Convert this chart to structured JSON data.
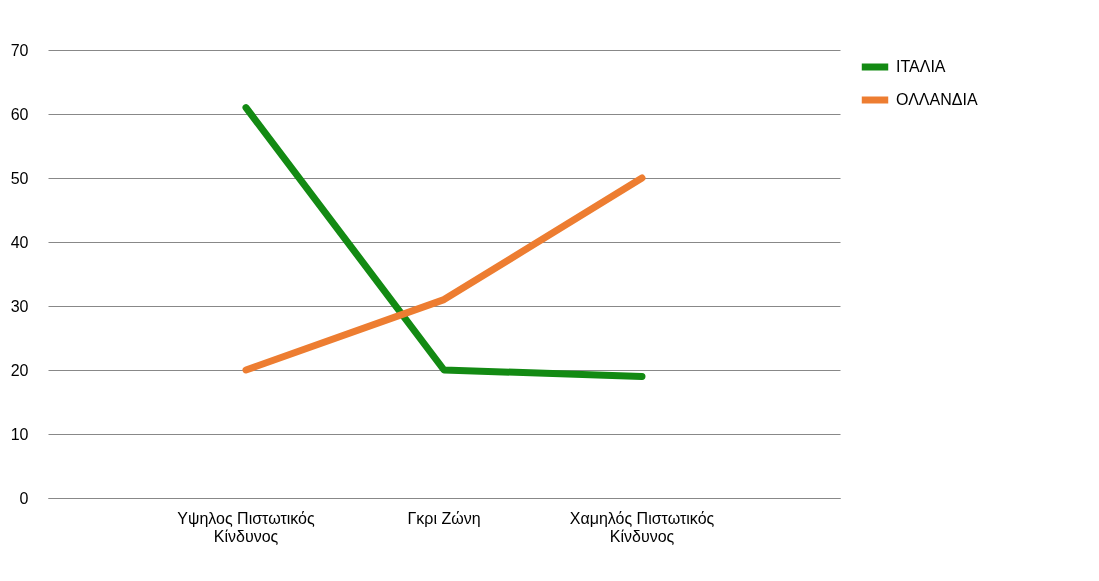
{
  "chart_data": {
    "type": "line",
    "categories": [
      "Υψηλος Πιστωτικός\nΚίνδυνος",
      "Γκρι Ζώνη",
      "Χαμηλός Πιστωτικός\nΚίνδυνος"
    ],
    "series": [
      {
        "name": "ΙΤΑΛΙΑ",
        "color": "#138a13",
        "values": [
          61,
          20,
          19
        ]
      },
      {
        "name": "ΟΛΛΑΝΔΙΑ",
        "color": "#ed7d31",
        "values": [
          20,
          31,
          50
        ]
      }
    ],
    "ylim": [
      0,
      70
    ],
    "yticks": [
      0,
      10,
      20,
      30,
      40,
      50,
      60,
      70
    ],
    "grid": "y",
    "legend": "right",
    "marker": "none",
    "line_style": "solid"
  }
}
